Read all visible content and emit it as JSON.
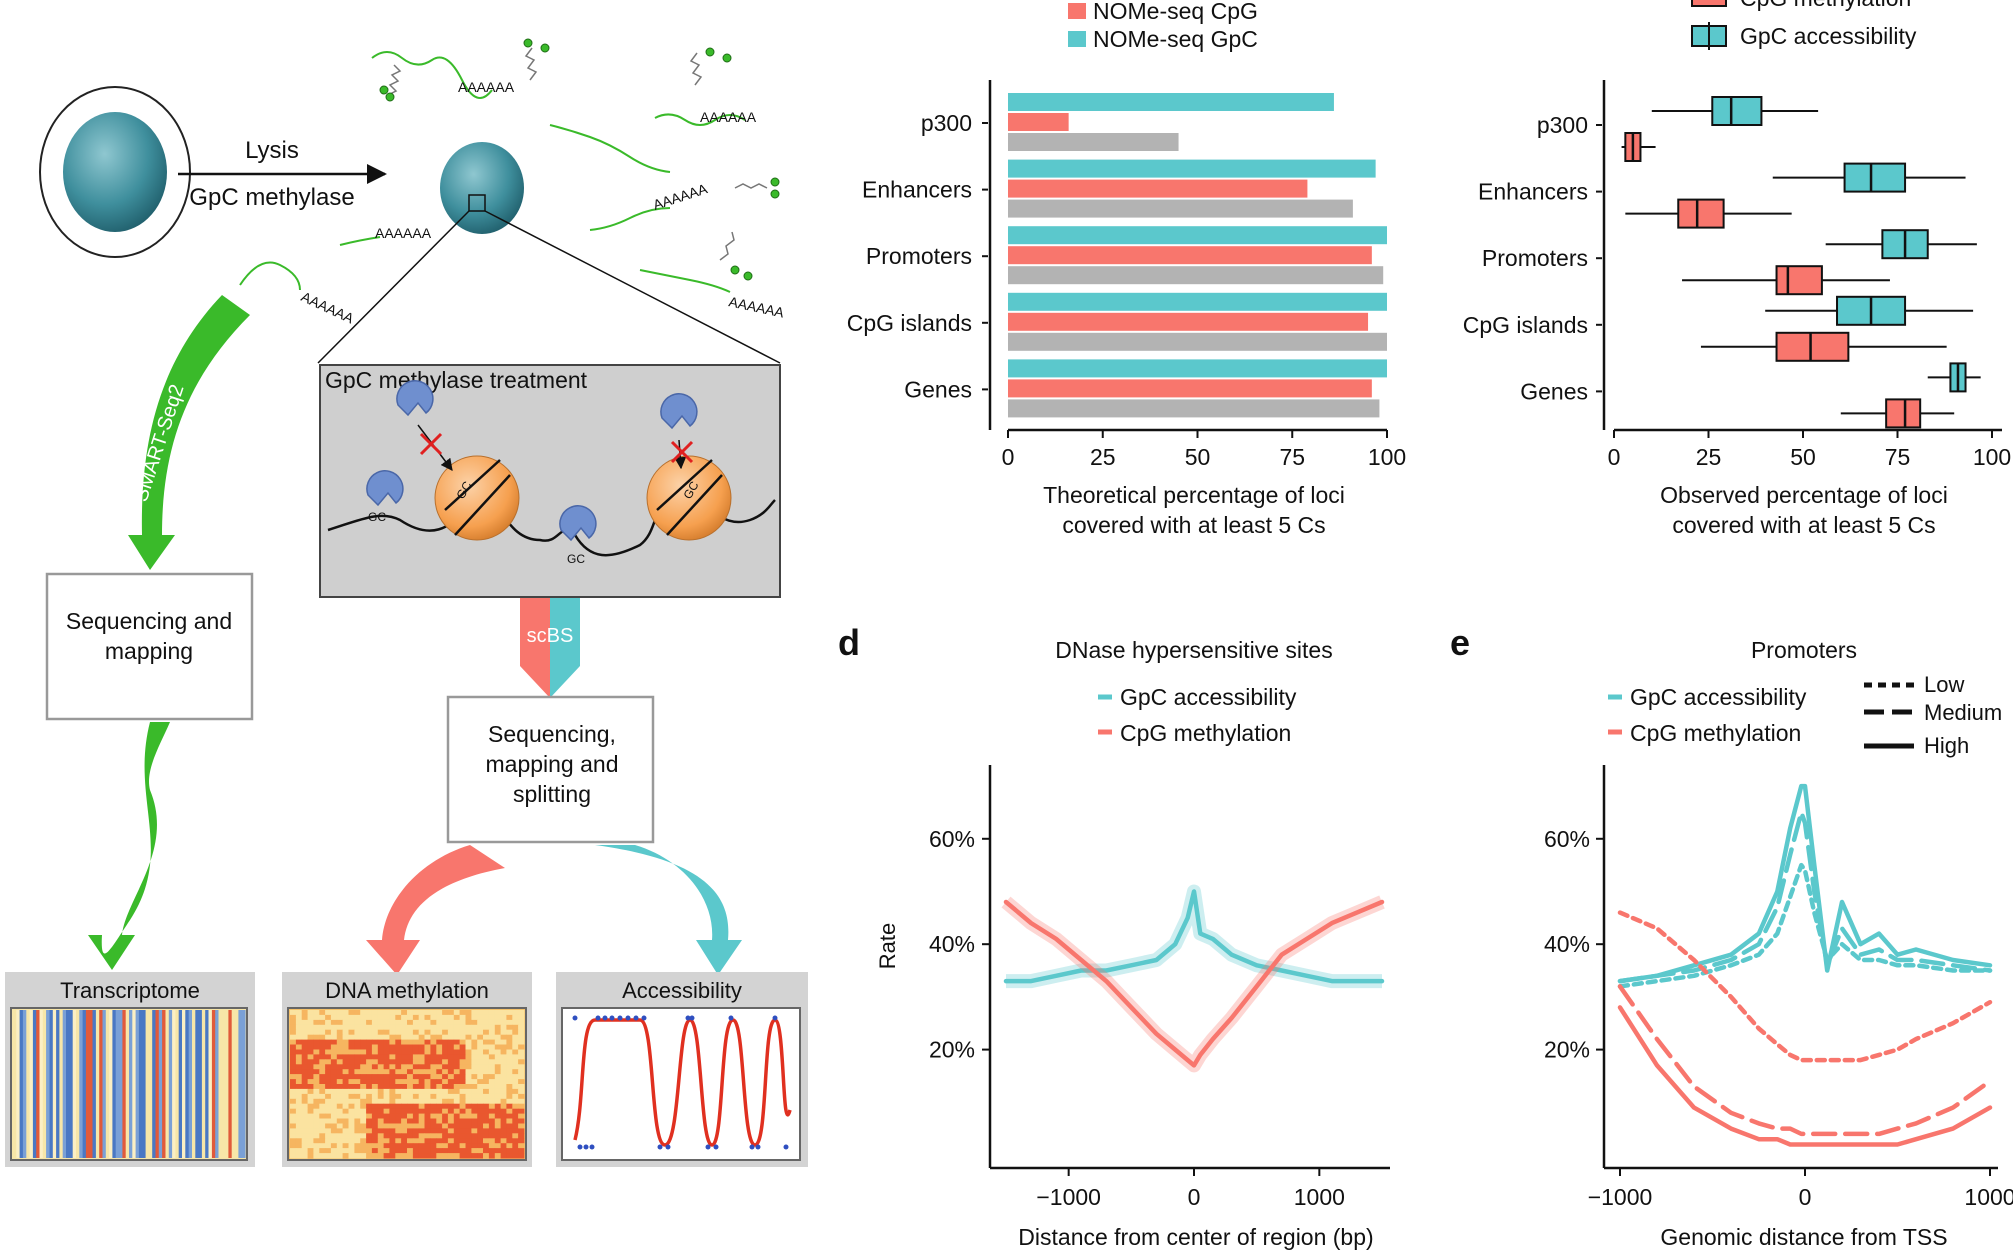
{
  "panel_a": {
    "lysis_label": "Lysis",
    "methylase_label": "GpC methylase",
    "polya_label": "AAAAAA",
    "treatment_title": "GpC methylase treatment",
    "gc_label": "GC",
    "smartseq_label": "SMART-Seq2",
    "scbs_label": "scBS",
    "seq_map_left_line1": "Sequencing and",
    "seq_map_left_line2": "mapping",
    "seq_map_right_line1": "Sequencing,",
    "seq_map_right_line2": "mapping and",
    "seq_map_right_line3": "splitting",
    "out_transcriptome": "Transcriptome",
    "out_methylation": "DNA methylation",
    "out_accessibility": "Accessibility",
    "colors": {
      "green": "#3aba2a",
      "salmon": "#f8766d",
      "teal": "#5bc8cc",
      "nucleus": "#3f8f9d",
      "enzyme": "#6f8fcf",
      "nucleosome": "#f6a04f",
      "box_gray": "#cfcfcf"
    }
  },
  "panel_b": {
    "legend": [
      "NOMe-seq CpG",
      "NOMe-seq GpC"
    ],
    "xlabel_line1": "Theoretical percentage of loci",
    "xlabel_line2": "covered with at least 5 Cs"
  },
  "panel_c": {
    "legend": [
      "CpG methylation",
      "GpC accessibility"
    ],
    "xlabel_line1": "Observed percentage of loci",
    "xlabel_line2": "covered with at least 5 Cs"
  },
  "panel_d": {
    "letter": "d",
    "title": "DNase hypersensitive sites",
    "legend": [
      "GpC accessibility",
      "CpG methylation"
    ],
    "ylabel": "Rate",
    "xlabel": "Distance from center of region (bp)"
  },
  "panel_e": {
    "letter": "e",
    "title": "Promoters",
    "legend": [
      "GpC accessibility",
      "CpG methylation"
    ],
    "line_legend": [
      "Low",
      "Medium",
      "High"
    ],
    "xlabel": "Genomic distance from TSS"
  },
  "chart_data": [
    {
      "id": "b",
      "type": "bar",
      "categories": [
        "p300",
        "Enhancers",
        "Promoters",
        "CpG islands",
        "Genes"
      ],
      "series": [
        {
          "name": "NOMe-seq GpC",
          "color": "#5bc8cc",
          "values": [
            86,
            97,
            100,
            100,
            100
          ]
        },
        {
          "name": "NOMe-seq CpG",
          "color": "#f8766d",
          "values": [
            16,
            79,
            96,
            95,
            96
          ]
        },
        {
          "color": "#b3b3b3",
          "values": [
            45,
            91,
            99,
            100,
            98
          ]
        }
      ],
      "xlim": [
        0,
        100
      ],
      "xticks": [
        0,
        25,
        50,
        75,
        100
      ],
      "xlabel": "Theoretical percentage of loci covered with at least 5 Cs"
    },
    {
      "id": "c",
      "type": "box",
      "categories": [
        "p300",
        "Enhancers",
        "Promoters",
        "CpG islands",
        "Genes"
      ],
      "series": [
        {
          "name": "GpC accessibility",
          "color": "#5bc8cc",
          "boxes": [
            [
              10,
              26,
              31,
              39,
              54
            ],
            [
              42,
              61,
              68,
              77,
              93
            ],
            [
              56,
              71,
              77,
              83,
              96
            ],
            [
              40,
              59,
              68,
              77,
              95
            ],
            [
              83,
              89,
              91,
              93,
              97
            ]
          ]
        },
        {
          "name": "CpG methylation",
          "color": "#f8766d",
          "boxes": [
            [
              2,
              3,
              5,
              7,
              11
            ],
            [
              3,
              17,
              22,
              29,
              47
            ],
            [
              18,
              43,
              46,
              55,
              73
            ],
            [
              23,
              43,
              52,
              62,
              88
            ],
            [
              60,
              72,
              77,
              81,
              90
            ]
          ]
        }
      ],
      "xlim": [
        0,
        100
      ],
      "xticks": [
        0,
        25,
        50,
        75,
        100
      ],
      "xlabel": "Observed percentage of loci covered with at least 5 Cs"
    },
    {
      "id": "d",
      "type": "line",
      "title": "DNase hypersensitive sites",
      "xlabel": "Distance from center of region (bp)",
      "ylabel": "Rate",
      "xlim": [
        -1500,
        1500
      ],
      "ylim": [
        0,
        0.74
      ],
      "xticks": [
        -1000,
        0,
        1000
      ],
      "yticks": [
        0.2,
        0.4,
        0.6
      ],
      "x": [
        -1500,
        -1300,
        -1100,
        -900,
        -700,
        -500,
        -300,
        -150,
        -50,
        0,
        50,
        150,
        300,
        500,
        700,
        900,
        1100,
        1300,
        1500
      ],
      "series": [
        {
          "name": "GpC accessibility",
          "color": "#5bc8cc",
          "values": [
            0.33,
            0.33,
            0.34,
            0.35,
            0.35,
            0.36,
            0.37,
            0.4,
            0.45,
            0.5,
            0.42,
            0.41,
            0.38,
            0.36,
            0.35,
            0.34,
            0.33,
            0.33,
            0.33
          ]
        },
        {
          "name": "CpG methylation",
          "color": "#f8766d",
          "values": [
            0.48,
            0.44,
            0.41,
            0.37,
            0.33,
            0.28,
            0.23,
            0.2,
            0.18,
            0.17,
            0.19,
            0.22,
            0.26,
            0.32,
            0.38,
            0.41,
            0.44,
            0.46,
            0.48
          ]
        }
      ]
    },
    {
      "id": "e",
      "type": "line",
      "title": "Promoters",
      "xlabel": "Genomic distance from TSS",
      "xlim": [
        -1000,
        1000
      ],
      "ylim": [
        0,
        0.74
      ],
      "xticks": [
        -1000,
        0,
        1000
      ],
      "yticks": [
        0.2,
        0.4,
        0.6
      ],
      "x": [
        -1000,
        -800,
        -600,
        -400,
        -250,
        -150,
        -80,
        -20,
        0,
        50,
        120,
        200,
        300,
        400,
        500,
        600,
        800,
        1000
      ],
      "series": [
        {
          "name": "GpC accessibility High",
          "color": "#5bc8cc",
          "dash": "solid",
          "values": [
            0.33,
            0.34,
            0.36,
            0.38,
            0.42,
            0.5,
            0.62,
            0.7,
            0.7,
            0.55,
            0.35,
            0.48,
            0.4,
            0.42,
            0.38,
            0.39,
            0.37,
            0.36
          ]
        },
        {
          "name": "GpC accessibility Medium",
          "color": "#5bc8cc",
          "dash": "medium",
          "values": [
            0.33,
            0.34,
            0.35,
            0.37,
            0.4,
            0.47,
            0.57,
            0.65,
            0.63,
            0.5,
            0.36,
            0.43,
            0.38,
            0.39,
            0.37,
            0.37,
            0.36,
            0.35
          ]
        },
        {
          "name": "GpC accessibility Low",
          "color": "#5bc8cc",
          "dash": "low",
          "values": [
            0.32,
            0.33,
            0.34,
            0.36,
            0.38,
            0.42,
            0.49,
            0.55,
            0.54,
            0.46,
            0.37,
            0.4,
            0.37,
            0.37,
            0.36,
            0.36,
            0.35,
            0.35
          ]
        },
        {
          "name": "CpG methylation Low",
          "color": "#f8766d",
          "dash": "low",
          "values": [
            0.46,
            0.43,
            0.37,
            0.3,
            0.24,
            0.21,
            0.19,
            0.18,
            0.18,
            0.18,
            0.18,
            0.18,
            0.18,
            0.19,
            0.2,
            0.22,
            0.25,
            0.29
          ]
        },
        {
          "name": "CpG methylation Medium",
          "color": "#f8766d",
          "dash": "medium",
          "values": [
            0.32,
            0.22,
            0.13,
            0.08,
            0.06,
            0.05,
            0.05,
            0.04,
            0.04,
            0.04,
            0.04,
            0.04,
            0.04,
            0.04,
            0.05,
            0.06,
            0.09,
            0.14
          ]
        },
        {
          "name": "CpG methylation High",
          "color": "#f8766d",
          "dash": "solid",
          "values": [
            0.28,
            0.17,
            0.09,
            0.05,
            0.03,
            0.03,
            0.02,
            0.02,
            0.02,
            0.02,
            0.02,
            0.02,
            0.02,
            0.02,
            0.02,
            0.03,
            0.05,
            0.09
          ]
        }
      ]
    }
  ]
}
